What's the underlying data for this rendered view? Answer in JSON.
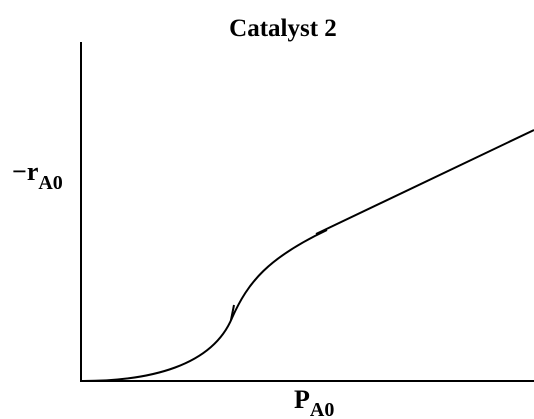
{
  "title": "Catalyst 2",
  "y_axis_label": {
    "main": "−r",
    "subscript": "A0"
  },
  "x_axis_label": {
    "main": "P",
    "subscript": "A0"
  }
}
